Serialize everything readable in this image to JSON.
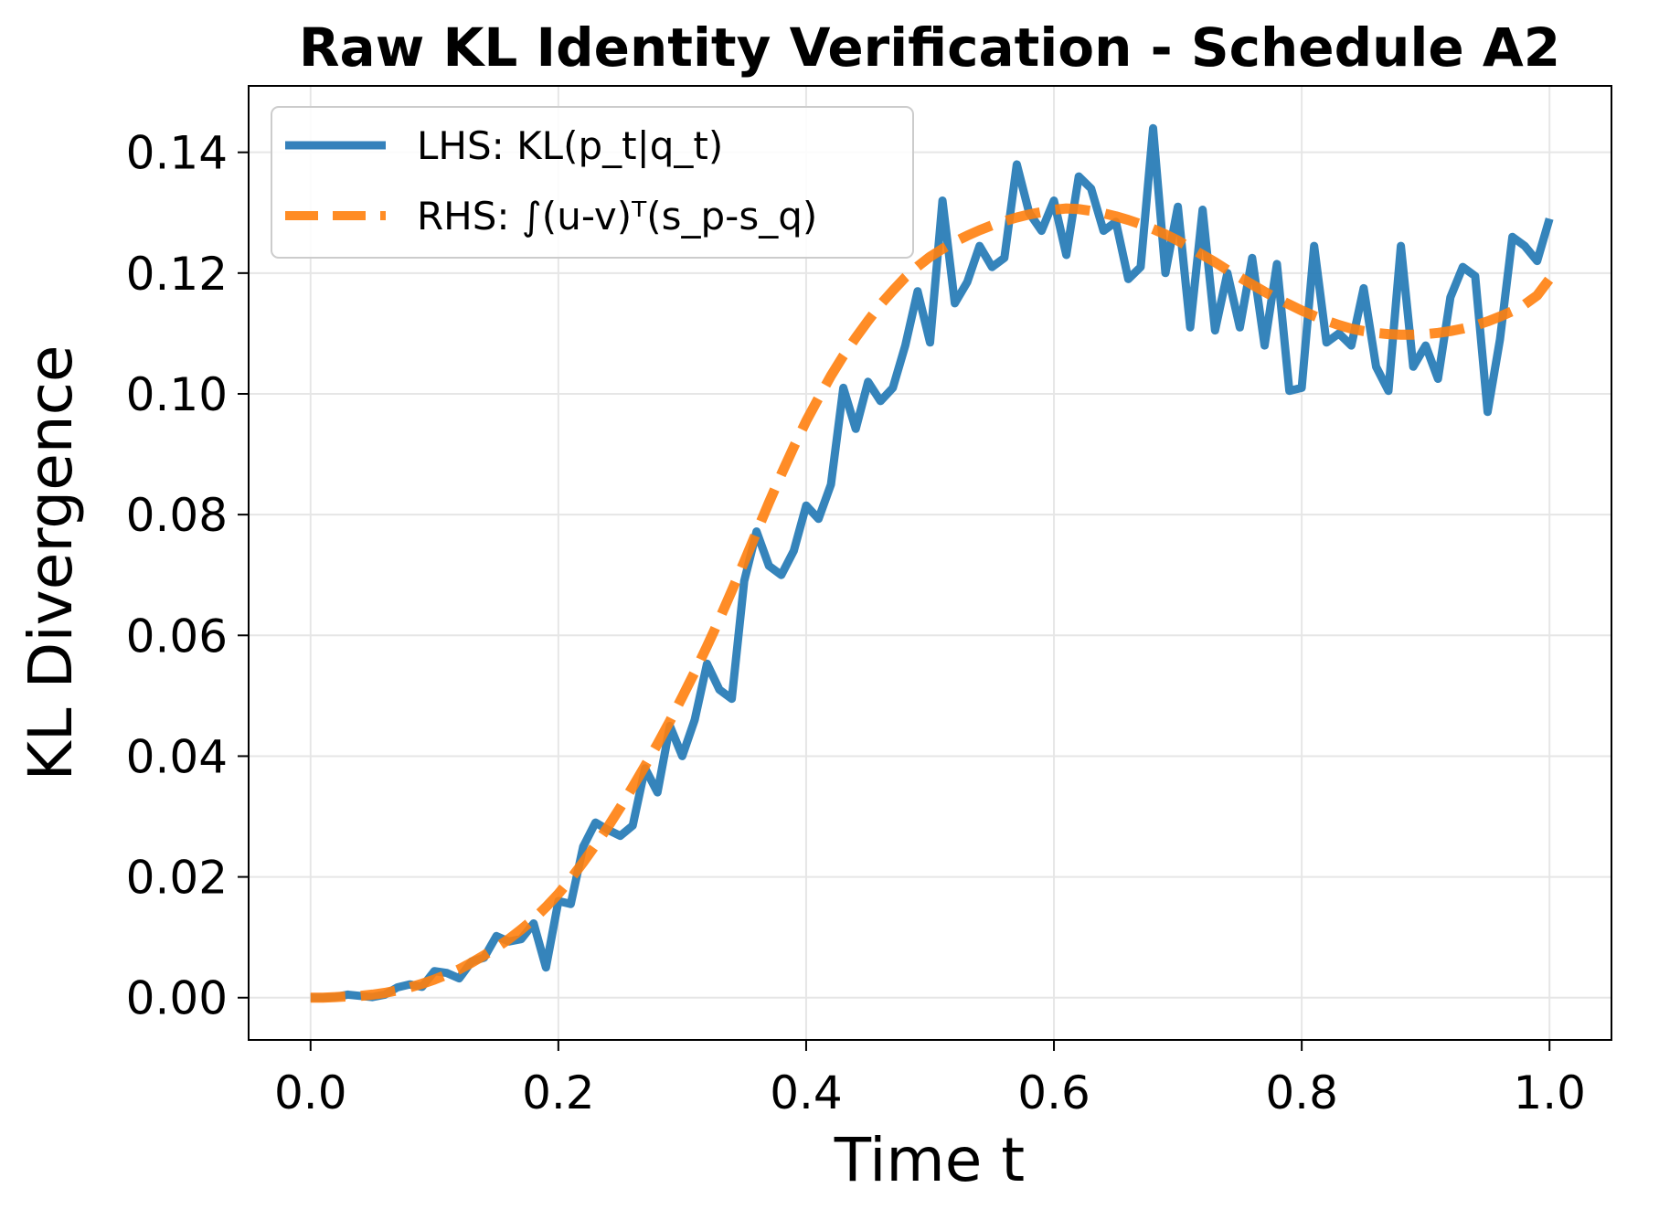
{
  "chart_data": {
    "type": "line",
    "title": "Raw KL Identity Verification - Schedule A2",
    "xlabel": "Time t",
    "ylabel": "KL Divergence",
    "xlim": [
      -0.05,
      1.05
    ],
    "ylim": [
      -0.007,
      0.151
    ],
    "xticks": [
      "0.0",
      "0.2",
      "0.4",
      "0.6",
      "0.8",
      "1.0"
    ],
    "yticks": [
      "0.00",
      "0.02",
      "0.04",
      "0.06",
      "0.08",
      "0.10",
      "0.12",
      "0.14"
    ],
    "grid": true,
    "legend_position": "upper-left",
    "x": [
      0.0,
      0.01,
      0.02,
      0.03,
      0.04,
      0.05,
      0.06,
      0.07,
      0.08,
      0.09,
      0.1,
      0.11,
      0.12,
      0.13,
      0.14,
      0.15,
      0.16,
      0.17,
      0.18,
      0.19,
      0.2,
      0.21,
      0.22,
      0.23,
      0.24,
      0.25,
      0.26,
      0.27,
      0.28,
      0.29,
      0.3,
      0.31,
      0.32,
      0.33,
      0.34,
      0.35,
      0.36,
      0.37,
      0.38,
      0.39,
      0.4,
      0.41,
      0.42,
      0.43,
      0.44,
      0.45,
      0.46,
      0.47,
      0.48,
      0.49,
      0.5,
      0.51,
      0.52,
      0.53,
      0.54,
      0.55,
      0.56,
      0.57,
      0.58,
      0.59,
      0.6,
      0.61,
      0.62,
      0.63,
      0.64,
      0.65,
      0.66,
      0.67,
      0.68,
      0.69,
      0.7,
      0.71,
      0.72,
      0.73,
      0.74,
      0.75,
      0.76,
      0.77,
      0.78,
      0.79,
      0.8,
      0.81,
      0.82,
      0.83,
      0.84,
      0.85,
      0.86,
      0.87,
      0.88,
      0.89,
      0.9,
      0.91,
      0.92,
      0.93,
      0.94,
      0.95,
      0.96,
      0.97,
      0.98,
      0.99,
      1.0
    ],
    "series": [
      {
        "name": "LHS: KL(p_t|q_t)",
        "color": "#1f77b4",
        "style": "solid",
        "values": [
          0.0,
          0.0,
          0.0001,
          0.0005,
          0.0003,
          0.0001,
          0.0005,
          0.0017,
          0.0022,
          0.0018,
          0.0044,
          0.0041,
          0.0032,
          0.006,
          0.0066,
          0.0102,
          0.0093,
          0.0097,
          0.0123,
          0.005,
          0.016,
          0.0155,
          0.025,
          0.029,
          0.0278,
          0.0268,
          0.0285,
          0.038,
          0.034,
          0.045,
          0.04,
          0.046,
          0.0553,
          0.051,
          0.0495,
          0.069,
          0.0772,
          0.0715,
          0.07,
          0.074,
          0.0815,
          0.0793,
          0.085,
          0.101,
          0.0942,
          0.102,
          0.0988,
          0.101,
          0.108,
          0.117,
          0.1085,
          0.132,
          0.115,
          0.1185,
          0.1245,
          0.121,
          0.1225,
          0.138,
          0.13,
          0.127,
          0.132,
          0.123,
          0.136,
          0.134,
          0.127,
          0.1285,
          0.119,
          0.121,
          0.144,
          0.12,
          0.131,
          0.111,
          0.1305,
          0.1105,
          0.12,
          0.111,
          0.1225,
          0.108,
          0.1215,
          0.1005,
          0.101,
          0.1245,
          0.1085,
          0.11,
          0.108,
          0.1175,
          0.1045,
          0.1005,
          0.1245,
          0.1045,
          0.108,
          0.1025,
          0.116,
          0.121,
          0.1195,
          0.097,
          0.109,
          0.126,
          0.1245,
          0.122,
          0.129
        ]
      },
      {
        "name": "RHS: ∫(u-v)ᵀ(s_p-s_q)",
        "color": "#ff7f0e",
        "style": "dashed",
        "values": [
          0.0,
          0.0,
          0.0001,
          0.0002,
          0.0003,
          0.0005,
          0.0008,
          0.0012,
          0.0017,
          0.0023,
          0.003,
          0.0038,
          0.0047,
          0.0058,
          0.007,
          0.0083,
          0.0097,
          0.0113,
          0.013,
          0.015,
          0.0172,
          0.0197,
          0.0224,
          0.0253,
          0.0283,
          0.0315,
          0.0349,
          0.0384,
          0.042,
          0.0458,
          0.0498,
          0.0539,
          0.0582,
          0.0627,
          0.0674,
          0.0722,
          0.0771,
          0.082,
          0.0867,
          0.0912,
          0.0955,
          0.0993,
          0.103,
          0.1063,
          0.1093,
          0.1121,
          0.1148,
          0.1171,
          0.1193,
          0.1211,
          0.1227,
          0.124,
          0.1252,
          0.1262,
          0.1271,
          0.1279,
          0.1286,
          0.1292,
          0.1297,
          0.1301,
          0.1305,
          0.1307,
          0.1306,
          0.1303,
          0.1299,
          0.1294,
          0.1288,
          0.1281,
          0.1273,
          0.1264,
          0.1254,
          0.1242,
          0.123,
          0.1218,
          0.1205,
          0.1193,
          0.1181,
          0.1169,
          0.1158,
          0.1148,
          0.1138,
          0.1129,
          0.1121,
          0.1114,
          0.1108,
          0.1104,
          0.1101,
          0.1099,
          0.1098,
          0.1098,
          0.1099,
          0.1101,
          0.1104,
          0.1108,
          0.1113,
          0.112,
          0.1128,
          0.1137,
          0.1148,
          0.1163,
          0.119
        ]
      }
    ]
  }
}
